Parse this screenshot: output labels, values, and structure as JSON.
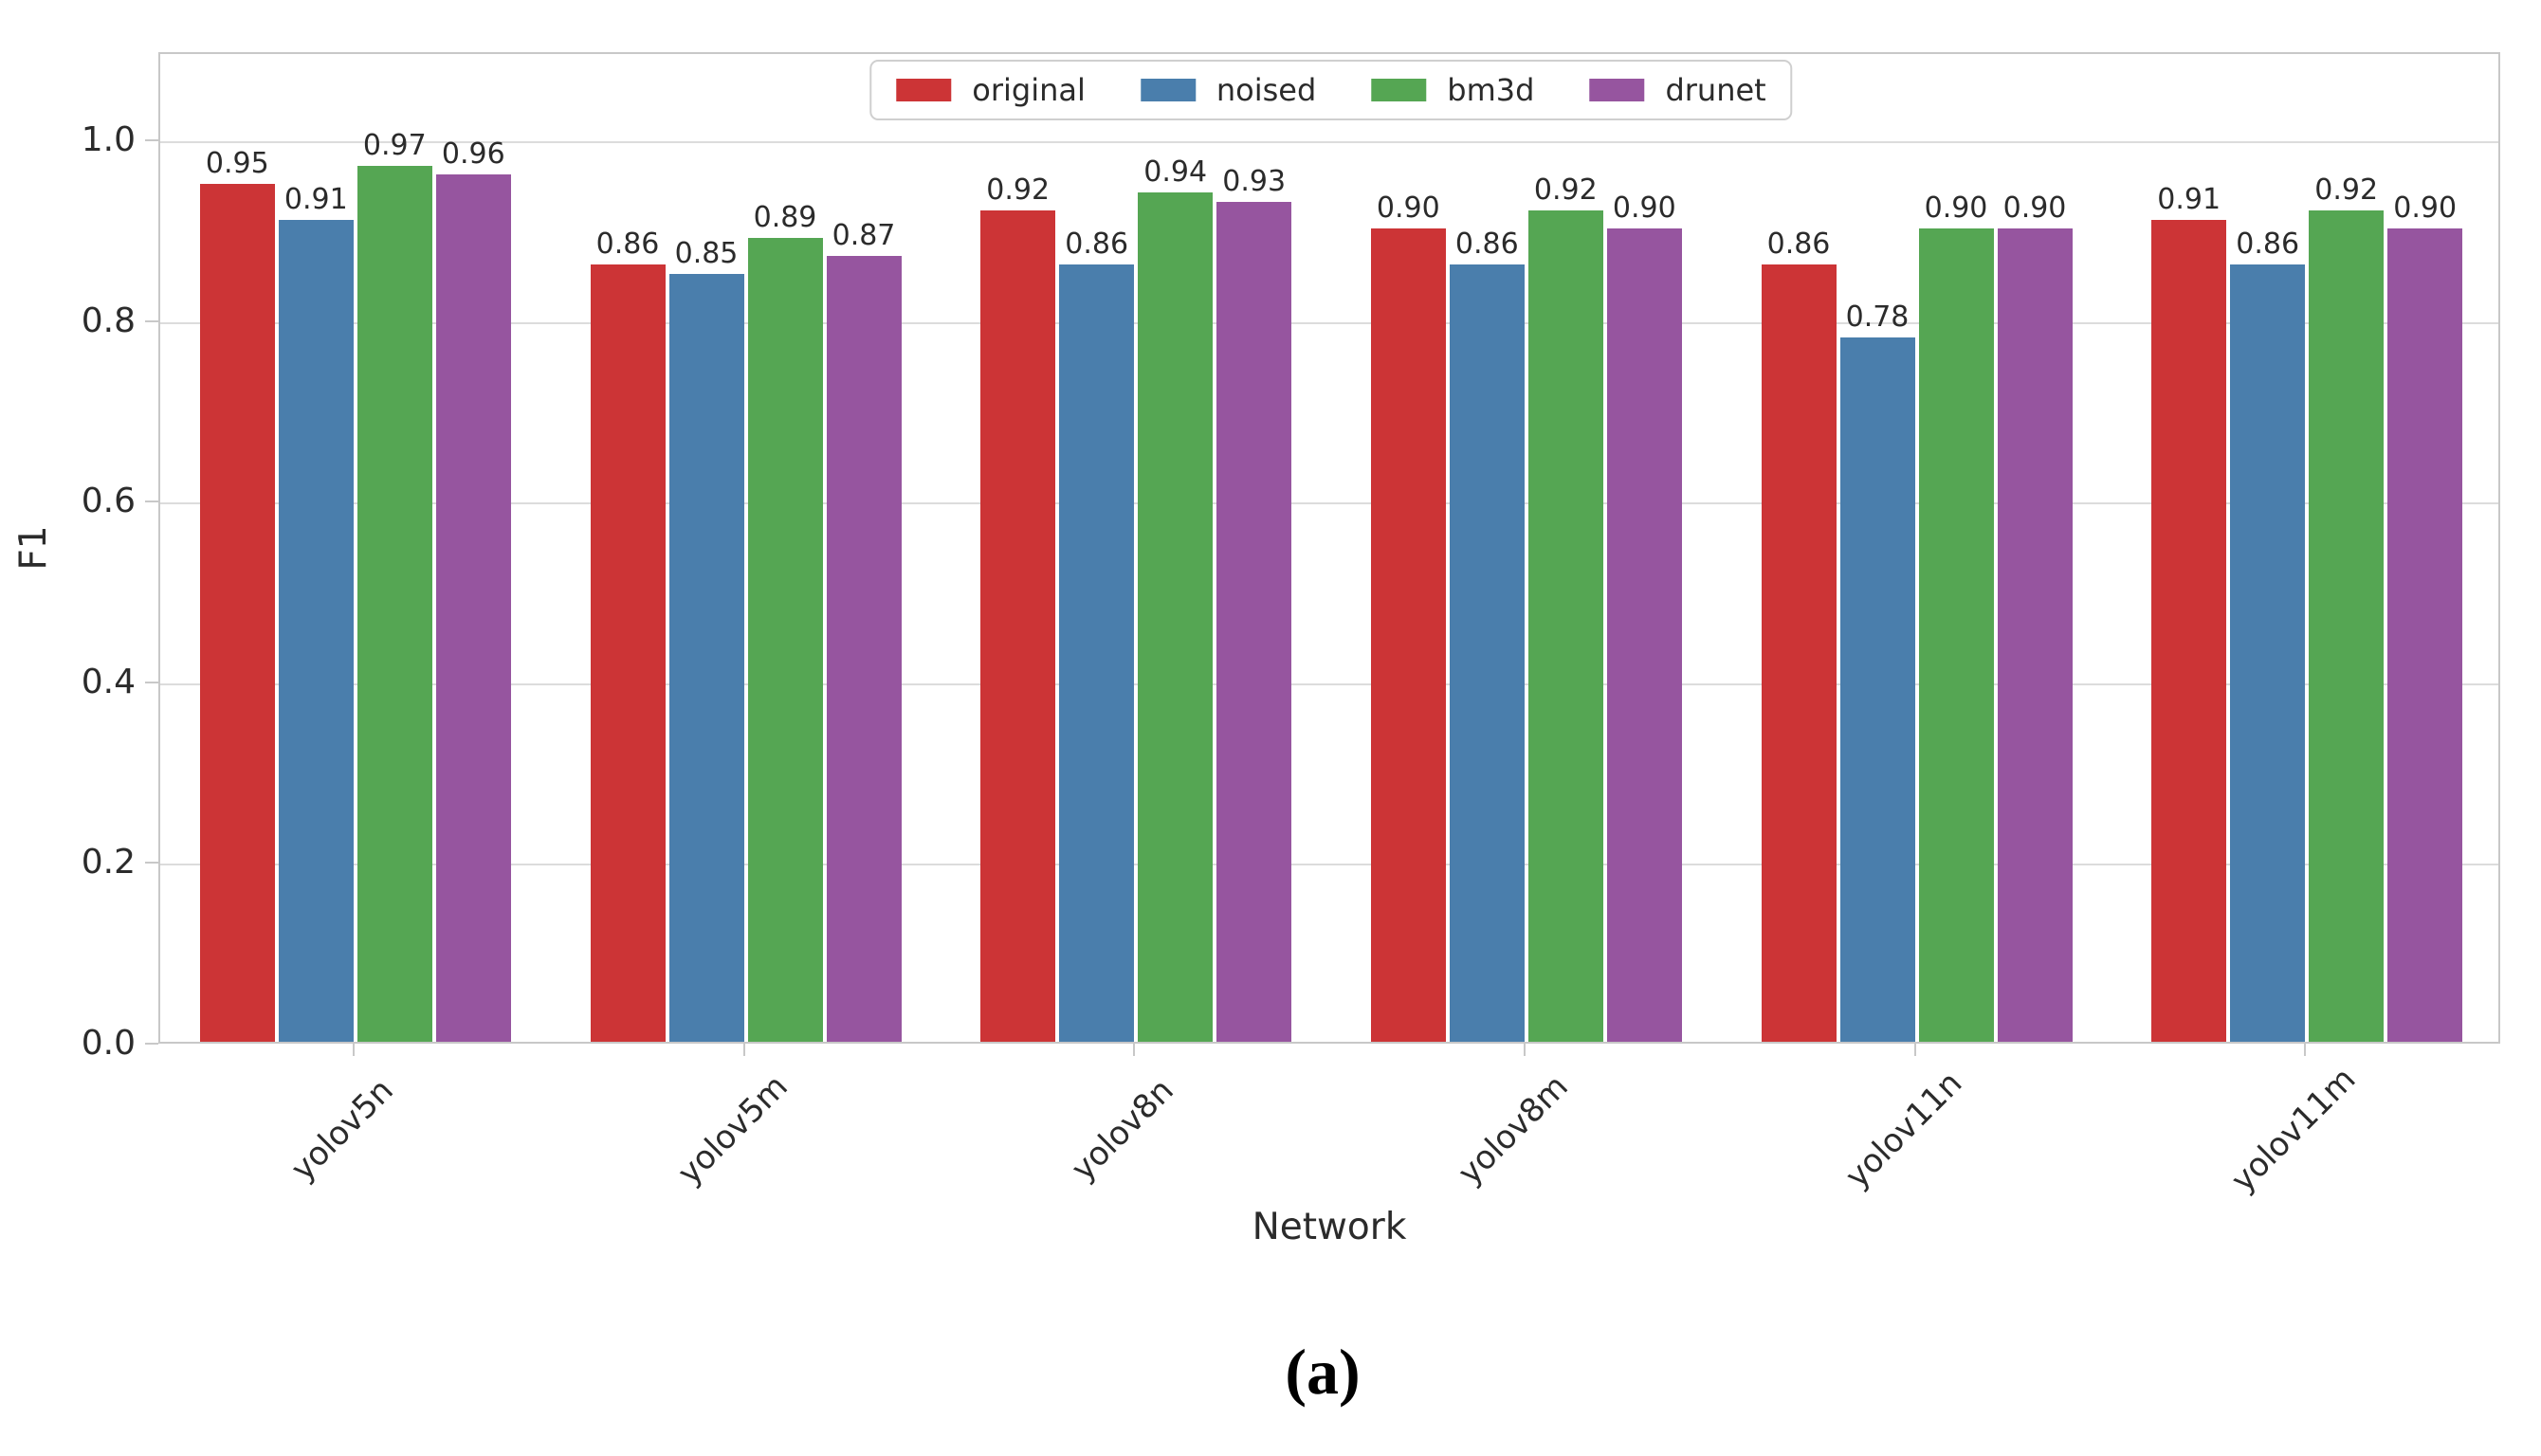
{
  "chart_data": {
    "type": "bar",
    "title": "",
    "xlabel": "Network",
    "ylabel": "F1",
    "caption": "(a)",
    "categories": [
      "yolov5n",
      "yolov5m",
      "yolov8n",
      "yolov8m",
      "yolov11n",
      "yolov11m"
    ],
    "series": [
      {
        "name": "original",
        "color": "#cc3436",
        "values": [
          0.95,
          0.86,
          0.92,
          0.9,
          0.86,
          0.91
        ]
      },
      {
        "name": "noised",
        "color": "#4a7eac",
        "values": [
          0.91,
          0.85,
          0.86,
          0.86,
          0.78,
          0.86
        ]
      },
      {
        "name": "bm3d",
        "color": "#55a653",
        "values": [
          0.97,
          0.89,
          0.94,
          0.92,
          0.9,
          0.92
        ]
      },
      {
        "name": "drunet",
        "color": "#96559f",
        "values": [
          0.96,
          0.87,
          0.93,
          0.9,
          0.9,
          0.9
        ]
      }
    ],
    "yticks": [
      0.0,
      0.2,
      0.4,
      0.6,
      0.8,
      1.0
    ],
    "ytick_labels": [
      "0.0",
      "0.2",
      "0.4",
      "0.6",
      "0.8",
      "1.0"
    ],
    "ylim": [
      0,
      1.1
    ],
    "grid": "horizontal",
    "legend_position": "top-center",
    "bar_labels_shown": true,
    "bar_label_decimals": 2,
    "colors": {
      "grid": "#dcdcdc",
      "spine": "#c8c8c8",
      "text": "#2b2b2b",
      "background": "#ffffff"
    }
  }
}
